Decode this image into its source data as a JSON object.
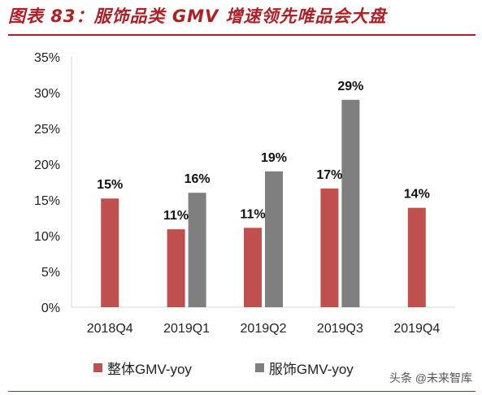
{
  "title": "图表 83：服饰品类 GMV 增速领先唯品会大盘",
  "watermark": "头条 @未来智库",
  "colors": {
    "overall": "#c0504d",
    "apparel": "#7f7f7f",
    "accent": "#b01f24"
  },
  "chart_data": {
    "type": "bar",
    "categories": [
      "2018Q4",
      "2019Q1",
      "2019Q2",
      "2019Q3",
      "2019Q4"
    ],
    "series": [
      {
        "name": "整体GMV-yoy",
        "values": [
          15.2,
          10.9,
          11.1,
          16.6,
          13.9
        ],
        "labels": [
          "15%",
          "11%",
          "11%",
          "17%",
          "14%"
        ]
      },
      {
        "name": "服饰GMV-yoy",
        "values": [
          null,
          16.0,
          19.0,
          29.0,
          null
        ],
        "labels": [
          "",
          "16%",
          "19%",
          "29%",
          ""
        ]
      }
    ],
    "ylim": [
      0,
      35
    ],
    "yticks": [
      "0%",
      "5%",
      "10%",
      "15%",
      "20%",
      "25%",
      "30%",
      "35%"
    ],
    "grid": false,
    "legend": "bottom"
  }
}
